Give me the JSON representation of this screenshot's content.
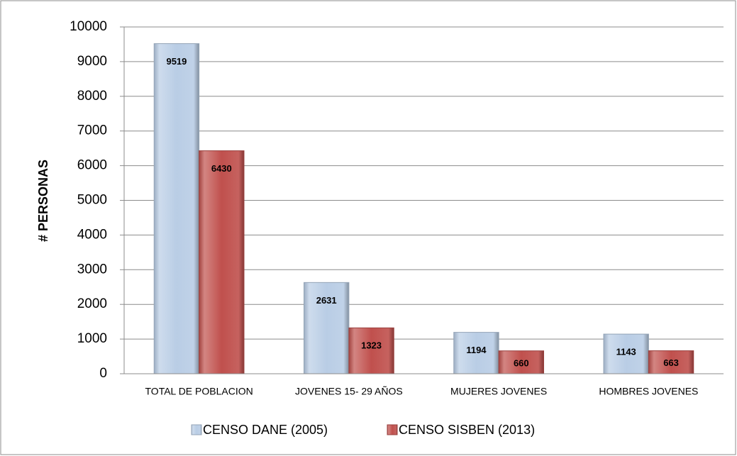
{
  "chart_data": {
    "type": "bar",
    "categories": [
      "TOTAL DE POBLACION",
      "JOVENES 15- 29 AÑOS",
      "MUJERES JOVENES",
      "HOMBRES JOVENES"
    ],
    "series": [
      {
        "name": "CENSO DANE (2005)",
        "color": "#b9cde5",
        "values": [
          9519,
          2631,
          1194,
          1143
        ]
      },
      {
        "name": "CENSO SISBEN (2013)",
        "color": "#c0504d",
        "values": [
          6430,
          1323,
          660,
          663
        ]
      }
    ],
    "y_label": "# PERSONAS",
    "ylim": [
      0,
      10000
    ],
    "yticks": [
      0,
      1000,
      2000,
      3000,
      4000,
      5000,
      6000,
      7000,
      8000,
      9000,
      10000
    ],
    "grid": true,
    "legend": "bottom"
  }
}
